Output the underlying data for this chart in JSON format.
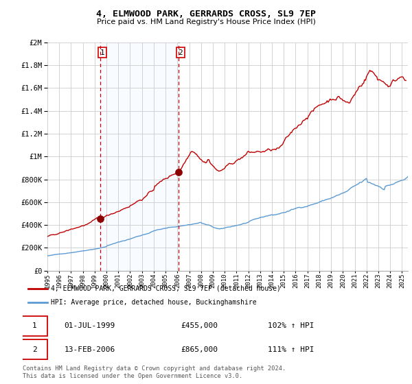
{
  "title": "4, ELMWOOD PARK, GERRARDS CROSS, SL9 7EP",
  "subtitle": "Price paid vs. HM Land Registry's House Price Index (HPI)",
  "legend_line1": "4, ELMWOOD PARK, GERRARDS CROSS, SL9 7EP (detached house)",
  "legend_line2": "HPI: Average price, detached house, Buckinghamshire",
  "footnote": "Contains HM Land Registry data © Crown copyright and database right 2024.\nThis data is licensed under the Open Government Licence v3.0.",
  "sale1_date_str": "01-JUL-1999",
  "sale1_price_str": "£455,000",
  "sale1_hpi_str": "102% ↑ HPI",
  "sale2_date_str": "13-FEB-2006",
  "sale2_price_str": "£865,000",
  "sale2_hpi_str": "111% ↑ HPI",
  "sale1_x": 1999.5,
  "sale1_y": 455000,
  "sale2_x": 2006.12,
  "sale2_y": 865000,
  "hpi_color": "#5b9bd5",
  "price_color": "#c00000",
  "shade_color": "#ddeeff",
  "dashed_color": "#cc0000",
  "grid_color": "#cccccc",
  "ylim": [
    0,
    2000000
  ],
  "xlim_start": 1995.0,
  "xlim_end": 2025.5,
  "yticks": [
    0,
    200000,
    400000,
    600000,
    800000,
    1000000,
    1200000,
    1400000,
    1600000,
    1800000,
    2000000
  ],
  "xticks": [
    1995,
    1996,
    1997,
    1998,
    1999,
    2000,
    2001,
    2002,
    2003,
    2004,
    2005,
    2006,
    2007,
    2008,
    2009,
    2010,
    2011,
    2012,
    2013,
    2014,
    2015,
    2016,
    2017,
    2018,
    2019,
    2020,
    2021,
    2022,
    2023,
    2024,
    2025
  ]
}
